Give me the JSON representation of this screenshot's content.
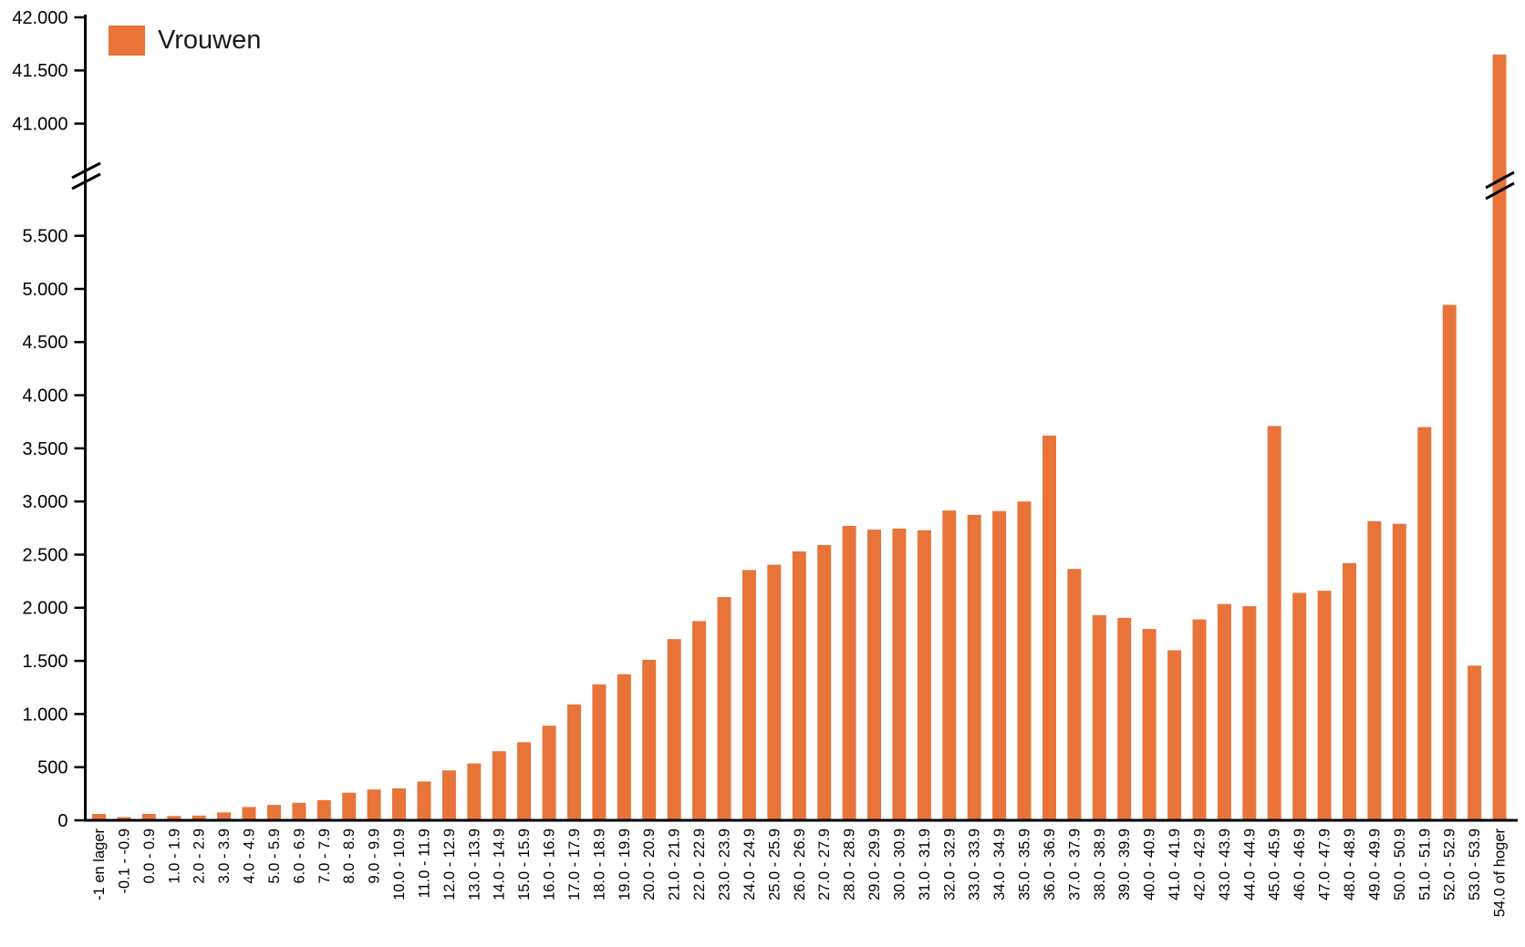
{
  "legend": {
    "label": "Vrouwen"
  },
  "colors": {
    "bar": "#E8743A",
    "axis": "#000000",
    "text": "#1a1a1a"
  },
  "chart_data": {
    "type": "bar",
    "title": "",
    "series_name": "Vrouwen",
    "legend_position": "top-left",
    "grid": false,
    "x_labels_rotated_degrees": 90,
    "categories": [
      "-1 en lager",
      "-0.1 - -0.9",
      "0.0 - 0.9",
      "1.0 - 1.9",
      "2.0 - 2.9",
      "3.0 - 3.9",
      "4.0 - 4.9",
      "5.0 - 5.9",
      "6.0 - 6.9",
      "7.0 - 7.9",
      "8.0 - 8.9",
      "9.0 - 9.9",
      "10.0 - 10.9",
      "11.0 - 11.9",
      "12.0 - 12.9",
      "13.0 - 13.9",
      "14.0 - 14.9",
      "15.0 - 15.9",
      "16.0 - 16.9",
      "17.0 - 17.9",
      "18.0 - 18.9",
      "19.0 - 19.9",
      "20.0 - 20.9",
      "21.0 - 21.9",
      "22.0 - 22.9",
      "23.0 - 23.9",
      "24.0 - 24.9",
      "25.0 - 25.9",
      "26.0 - 26.9",
      "27.0 - 27.9",
      "28.0 - 28.9",
      "29.0 - 29.9",
      "30.0 - 30.9",
      "31.0 - 31.9",
      "32.0 - 32.9",
      "33.0 - 33.9",
      "34.0 - 34.9",
      "35.0 - 35.9",
      "36.0 - 36.9",
      "37.0 - 37.9",
      "38.0 - 38.9",
      "39.0 - 39.9",
      "40.0 - 40.9",
      "41.0 - 41.9",
      "42.0 - 42.9",
      "43.0 - 43.9",
      "44.0 - 44.9",
      "45.0 - 45.9",
      "46.0 - 46.9",
      "47.0 - 47.9",
      "48.0 - 48.9",
      "49.0 - 49.9",
      "50.0 - 50.9",
      "51.0 - 51.9",
      "52.0 - 52.9",
      "53.0 - 53.9",
      "54.0 of hoger"
    ],
    "values": [
      60,
      30,
      60,
      40,
      45,
      75,
      125,
      145,
      165,
      190,
      260,
      290,
      300,
      365,
      470,
      535,
      650,
      735,
      890,
      1090,
      1280,
      1375,
      1510,
      1705,
      1875,
      2100,
      2355,
      2405,
      2530,
      2590,
      2770,
      2735,
      2745,
      2730,
      2915,
      2875,
      2910,
      3000,
      3620,
      2365,
      1930,
      1905,
      1800,
      1600,
      1890,
      2035,
      2015,
      3710,
      2140,
      2160,
      2420,
      2815,
      2790,
      3700,
      4850,
      1455,
      41650
    ],
    "y_axis": {
      "axis_break": {
        "lower_max": 5500,
        "upper_min": 41000,
        "upper_max": 42000
      },
      "lower_ticks": [
        {
          "value": 0,
          "label": "0"
        },
        {
          "value": 500,
          "label": "500"
        },
        {
          "value": 1000,
          "label": "1.000"
        },
        {
          "value": 1500,
          "label": "1.500"
        },
        {
          "value": 2000,
          "label": "2.000"
        },
        {
          "value": 2500,
          "label": "2.500"
        },
        {
          "value": 3000,
          "label": "3.000"
        },
        {
          "value": 3500,
          "label": "3.500"
        },
        {
          "value": 4000,
          "label": "4.000"
        },
        {
          "value": 4500,
          "label": "4.500"
        },
        {
          "value": 5000,
          "label": "5.000"
        },
        {
          "value": 5500,
          "label": "5.500"
        }
      ],
      "upper_ticks": [
        {
          "value": 41000,
          "label": "41.000"
        },
        {
          "value": 41500,
          "label": "41.500"
        },
        {
          "value": 42000,
          "label": "42.000"
        }
      ]
    }
  }
}
